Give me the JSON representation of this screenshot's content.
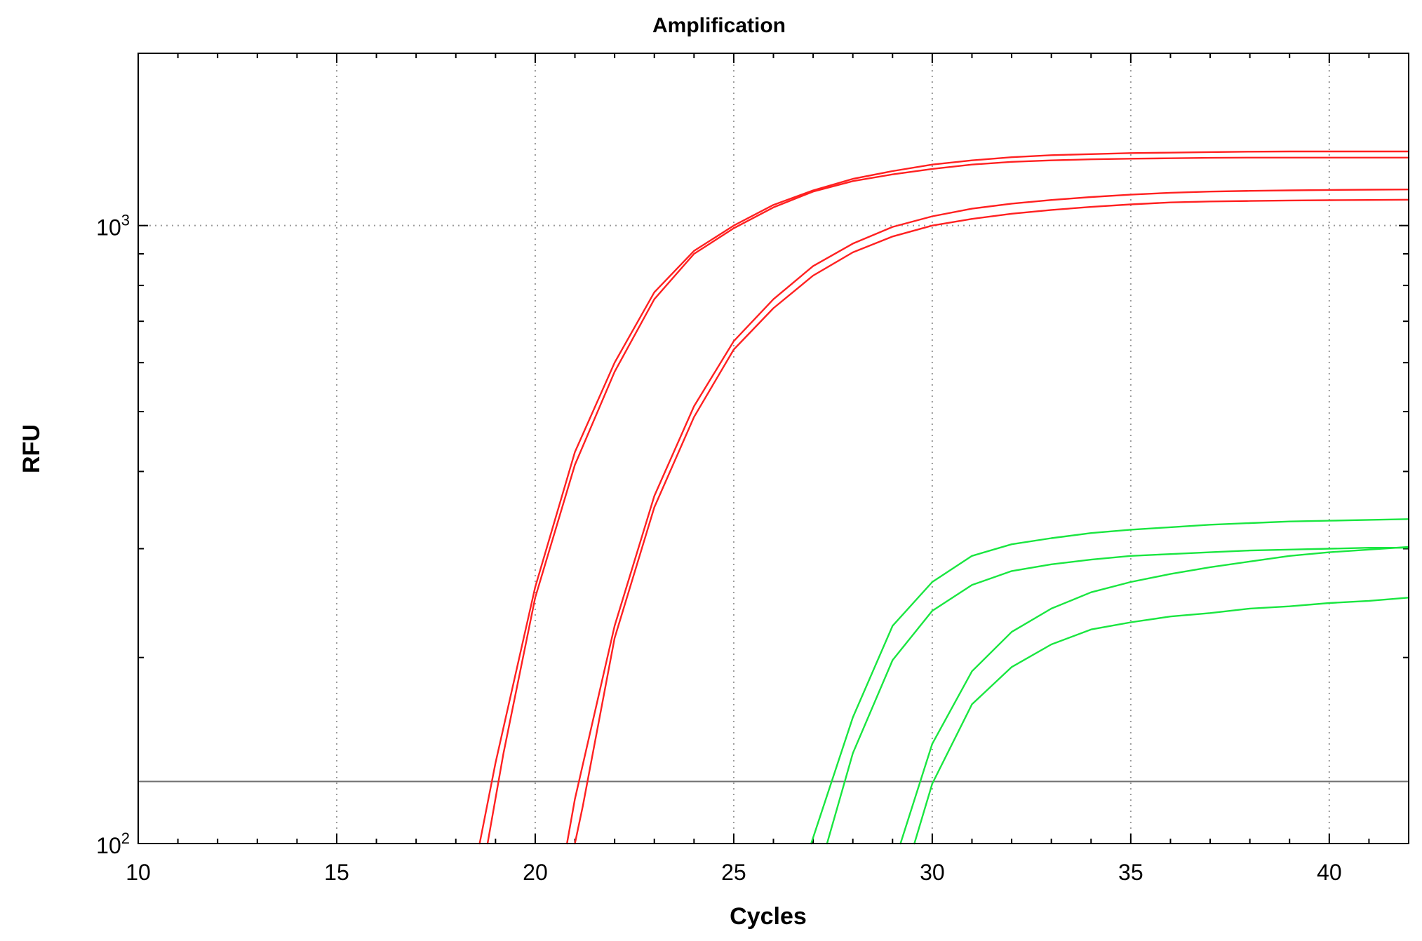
{
  "chart_data": {
    "type": "line",
    "title": "Amplification",
    "xlabel": "Cycles",
    "ylabel": "RFU",
    "xlim": [
      10,
      42
    ],
    "ylim": [
      100,
      1900
    ],
    "y_scale": "log",
    "grid": true,
    "x_ticks": [
      {
        "value": 10,
        "label": "10"
      },
      {
        "value": 15,
        "label": "15"
      },
      {
        "value": 20,
        "label": "20"
      },
      {
        "value": 25,
        "label": "25"
      },
      {
        "value": 30,
        "label": "30"
      },
      {
        "value": 35,
        "label": "35"
      },
      {
        "value": 40,
        "label": "40"
      }
    ],
    "y_ticks": [
      {
        "value": 100,
        "base": "10",
        "exp": "2"
      },
      {
        "value": 1000,
        "base": "10",
        "exp": "3"
      }
    ],
    "threshold": 126,
    "colors": {
      "red": "#ff2020",
      "green": "#19e640",
      "threshold": "#707070"
    },
    "series": [
      {
        "color": "#ff2020",
        "x": [
          18.6,
          19,
          20,
          21,
          22,
          23,
          24,
          25,
          26,
          27,
          28,
          29,
          30,
          31,
          32,
          33,
          34,
          35,
          36,
          37,
          38,
          39,
          40,
          41,
          42
        ],
        "y": [
          100,
          135,
          260,
          430,
          600,
          780,
          910,
          1000,
          1080,
          1140,
          1190,
          1225,
          1255,
          1275,
          1290,
          1300,
          1305,
          1310,
          1312,
          1315,
          1317,
          1318,
          1318,
          1318,
          1318
        ]
      },
      {
        "color": "#ff2020",
        "x": [
          18.8,
          19.2,
          20,
          21,
          22,
          23,
          24,
          25,
          26,
          27,
          28,
          29,
          30,
          31,
          32,
          33,
          34,
          35,
          36,
          37,
          38,
          39,
          40,
          41,
          42
        ],
        "y": [
          100,
          140,
          250,
          410,
          580,
          760,
          900,
          990,
          1070,
          1135,
          1180,
          1210,
          1235,
          1255,
          1268,
          1275,
          1280,
          1283,
          1285,
          1287,
          1288,
          1288,
          1288,
          1288,
          1288
        ]
      },
      {
        "color": "#ff2020",
        "x": [
          20.8,
          21,
          22,
          23,
          24,
          25,
          26,
          27,
          28,
          29,
          30,
          31,
          32,
          33,
          34,
          35,
          36,
          37,
          38,
          39,
          40,
          41,
          42
        ],
        "y": [
          100,
          118,
          225,
          365,
          510,
          650,
          760,
          860,
          935,
          995,
          1035,
          1065,
          1085,
          1100,
          1112,
          1122,
          1130,
          1135,
          1138,
          1140,
          1142,
          1143,
          1144
        ]
      },
      {
        "color": "#ff2020",
        "x": [
          21,
          21.2,
          22,
          23,
          24,
          25,
          26,
          27,
          28,
          29,
          30,
          31,
          32,
          33,
          34,
          35,
          36,
          37,
          38,
          39,
          40,
          41,
          42
        ],
        "y": [
          100,
          115,
          215,
          350,
          490,
          630,
          735,
          830,
          905,
          960,
          1000,
          1025,
          1045,
          1060,
          1072,
          1082,
          1090,
          1094,
          1096,
          1098,
          1099,
          1100,
          1101
        ]
      },
      {
        "color": "#19e640",
        "x": [
          26.95,
          28,
          29,
          30,
          31,
          32,
          33,
          34,
          35,
          36,
          37,
          38,
          39,
          40,
          41,
          42
        ],
        "y": [
          100,
          160,
          225,
          265,
          292,
          305,
          312,
          318,
          322,
          325,
          328,
          330,
          332,
          333,
          334,
          335
        ]
      },
      {
        "color": "#19e640",
        "x": [
          27.35,
          28,
          29,
          30,
          31,
          32,
          33,
          34,
          35,
          36,
          37,
          38,
          39,
          40,
          41,
          42
        ],
        "y": [
          100,
          140,
          198,
          238,
          262,
          276,
          283,
          288,
          292,
          294,
          296,
          298,
          299,
          300,
          301,
          301
        ]
      },
      {
        "color": "#19e640",
        "x": [
          29.2,
          30,
          31,
          32,
          33,
          34,
          35,
          36,
          37,
          38,
          39,
          40,
          41,
          42
        ],
        "y": [
          100,
          145,
          190,
          220,
          240,
          255,
          265,
          273,
          280,
          286,
          292,
          296,
          299,
          302
        ]
      },
      {
        "color": "#19e640",
        "x": [
          29.55,
          30,
          31,
          32,
          33,
          34,
          35,
          36,
          37,
          38,
          39,
          40,
          41,
          42
        ],
        "y": [
          100,
          125,
          168,
          193,
          210,
          222,
          228,
          233,
          236,
          240,
          242,
          245,
          247,
          250
        ]
      }
    ]
  }
}
